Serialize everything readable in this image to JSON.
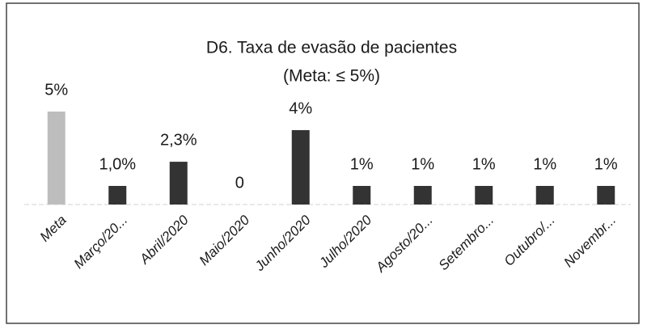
{
  "chart_data": {
    "type": "bar",
    "title": "D6. Taxa de evasão de pacientes",
    "subtitle": "(Meta: ≤ 5%)",
    "categories": [
      "Meta",
      "Março/20...",
      "Abril/2020",
      "Maio/2020",
      "Junho/2020",
      "Julho/2020",
      "Agosto/20...",
      "Setembro...",
      "Outubro/...",
      "Novembr..."
    ],
    "values": [
      5,
      1.0,
      2.3,
      0,
      4,
      1,
      1,
      1,
      1,
      1
    ],
    "value_labels": [
      "5%",
      "1,0%",
      "2,3%",
      "0",
      "4%",
      "1%",
      "1%",
      "1%",
      "1%",
      "1%"
    ],
    "colors": [
      "#bdbdbd",
      "#333333",
      "#333333",
      "#333333",
      "#333333",
      "#333333",
      "#333333",
      "#333333",
      "#333333",
      "#333333"
    ]
  }
}
